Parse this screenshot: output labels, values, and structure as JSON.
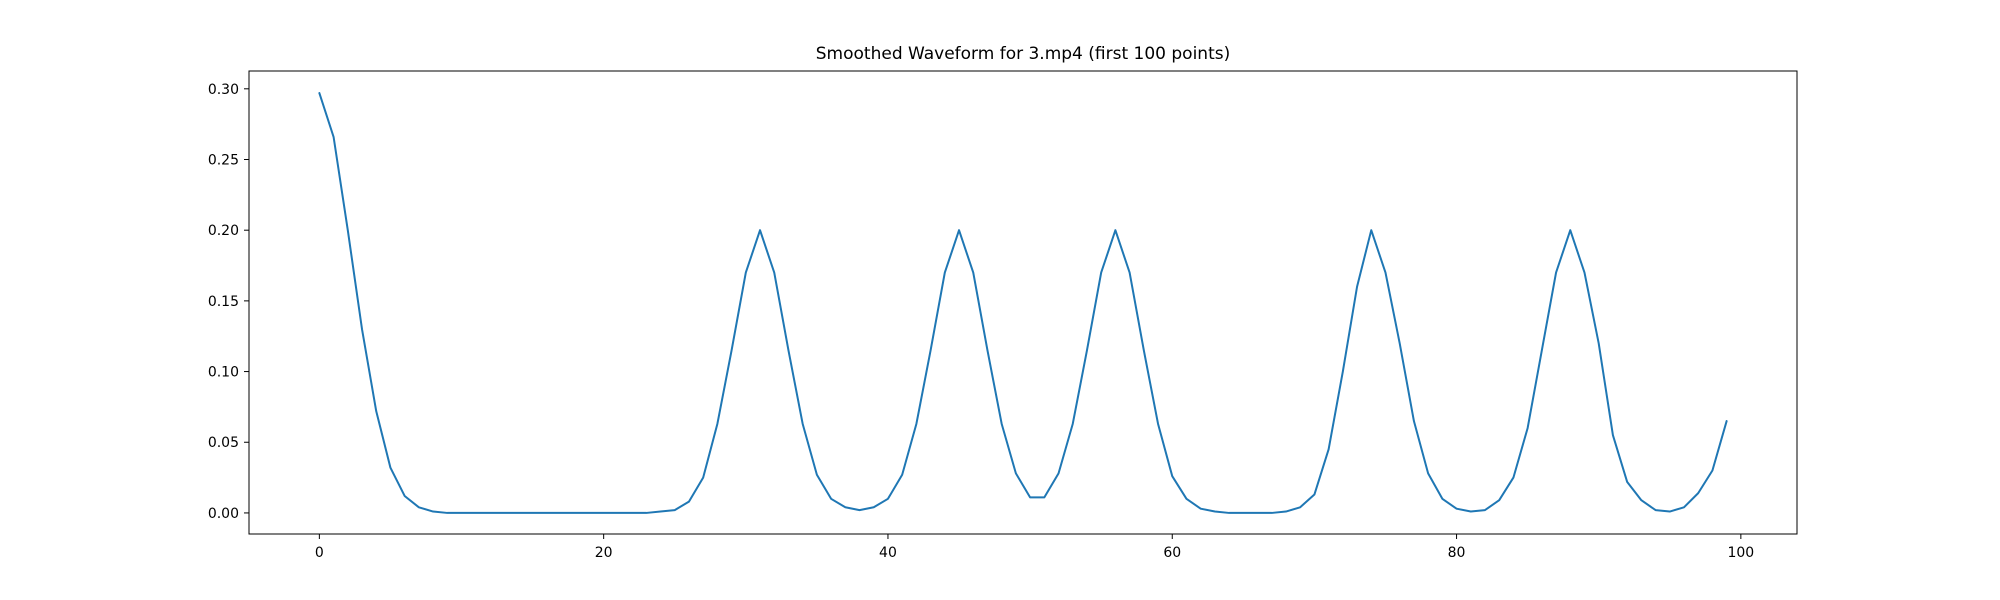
{
  "figure": {
    "background": "#ffffff"
  },
  "chart_data": {
    "type": "line",
    "title": "Smoothed Waveform for 3.mp4 (first 100 points)",
    "xlabel": "",
    "ylabel": "",
    "grid": false,
    "legend": null,
    "line_color": "#1f77b4",
    "axis_color": "#000000",
    "xlim": [
      -4.95,
      103.95
    ],
    "ylim": [
      -0.0149,
      0.3126
    ],
    "x_ticks": [
      0,
      20,
      40,
      60,
      80,
      100
    ],
    "x_tick_labels": [
      "0",
      "20",
      "40",
      "60",
      "80",
      "100"
    ],
    "y_ticks": [
      0.0,
      0.05,
      0.1,
      0.15,
      0.2,
      0.25,
      0.3
    ],
    "y_tick_labels": [
      "0.00",
      "0.05",
      "0.10",
      "0.15",
      "0.20",
      "0.25",
      "0.30"
    ],
    "x": [
      0,
      1,
      2,
      3,
      4,
      5,
      6,
      7,
      8,
      9,
      10,
      11,
      12,
      13,
      14,
      15,
      16,
      17,
      18,
      19,
      20,
      21,
      22,
      23,
      24,
      25,
      26,
      27,
      28,
      29,
      30,
      31,
      32,
      33,
      34,
      35,
      36,
      37,
      38,
      39,
      40,
      41,
      42,
      43,
      44,
      45,
      46,
      47,
      48,
      49,
      50,
      51,
      52,
      53,
      54,
      55,
      56,
      57,
      58,
      59,
      60,
      61,
      62,
      63,
      64,
      65,
      66,
      67,
      68,
      69,
      70,
      71,
      72,
      73,
      74,
      75,
      76,
      77,
      78,
      79,
      80,
      81,
      82,
      83,
      84,
      85,
      86,
      87,
      88,
      89,
      90,
      91,
      92,
      93,
      94,
      95,
      96,
      97,
      98,
      99
    ],
    "values": [
      0.297,
      0.266,
      0.2,
      0.13,
      0.072,
      0.032,
      0.012,
      0.004,
      0.001,
      0.0,
      0.0,
      0.0,
      0.0,
      0.0,
      0.0,
      0.0,
      0.0,
      0.0,
      0.0,
      0.0,
      0.0,
      0.0,
      0.0,
      0.0,
      0.001,
      0.002,
      0.008,
      0.025,
      0.063,
      0.115,
      0.17,
      0.2,
      0.17,
      0.115,
      0.063,
      0.027,
      0.01,
      0.004,
      0.002,
      0.004,
      0.01,
      0.027,
      0.063,
      0.115,
      0.17,
      0.2,
      0.17,
      0.115,
      0.063,
      0.028,
      0.011,
      0.011,
      0.028,
      0.063,
      0.115,
      0.17,
      0.2,
      0.17,
      0.115,
      0.063,
      0.026,
      0.01,
      0.003,
      0.001,
      0.0,
      0.0,
      0.0,
      0.0,
      0.001,
      0.004,
      0.013,
      0.045,
      0.1,
      0.16,
      0.2,
      0.17,
      0.12,
      0.065,
      0.028,
      0.01,
      0.003,
      0.001,
      0.002,
      0.009,
      0.025,
      0.06,
      0.115,
      0.17,
      0.2,
      0.17,
      0.12,
      0.055,
      0.022,
      0.009,
      0.002,
      0.001,
      0.004,
      0.014,
      0.03,
      0.065
    ]
  }
}
